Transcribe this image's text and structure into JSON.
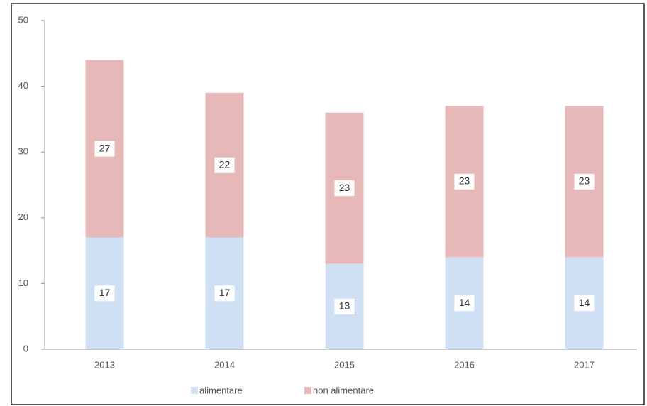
{
  "chart_data": {
    "type": "stacked_bar",
    "categories": [
      "2013",
      "2014",
      "2015",
      "2016",
      "2017"
    ],
    "series": [
      {
        "name": "alimentare",
        "color": "#cfe0f4",
        "values": [
          17,
          17,
          13,
          14,
          14
        ]
      },
      {
        "name": "non alimentare",
        "color": "#e6b9b8",
        "values": [
          27,
          22,
          23,
          23,
          23
        ]
      }
    ],
    "ylim": [
      0,
      50
    ],
    "yticks": [
      0,
      10,
      20,
      30,
      40,
      50
    ],
    "grid": false,
    "legend": "bottom"
  }
}
